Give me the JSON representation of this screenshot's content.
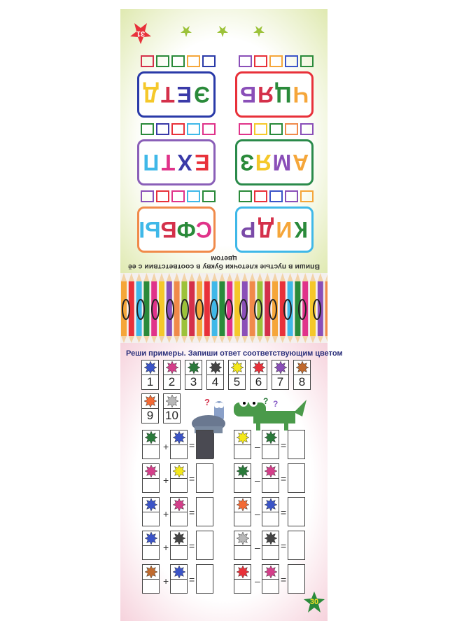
{
  "top_page": {
    "page_number": "31",
    "instruction": "Впиши в пустые клеточки букву в соответствии с её цветом",
    "words": [
      {
        "frame": "#3fb8e8",
        "letters": [
          [
            "К",
            "#2a8a3a"
          ],
          [
            "И",
            "#f5a63a"
          ],
          [
            "Д",
            "#d4304a"
          ],
          [
            "Р",
            "#7a4aa8"
          ]
        ],
        "squares": [
          "#f5a63a",
          "#8a4fb8",
          "#3b54c8",
          "#e8313a",
          "#2a8a3a"
        ]
      },
      {
        "frame": "#f08a4a",
        "letters": [
          [
            "С",
            "#e0338a"
          ],
          [
            "Ф",
            "#2a8a3a"
          ],
          [
            "Б",
            "#d4304a"
          ],
          [
            "Ы",
            "#3fb8e8"
          ]
        ],
        "squares": [
          "#2a8a3a",
          "#3fb8e8",
          "#e0338a",
          "#e8313a",
          "#8a4fb8"
        ]
      },
      {
        "frame": "#2a8a4a",
        "letters": [
          [
            "А",
            "#f5a63a"
          ],
          [
            "М",
            "#8a4fb8"
          ],
          [
            "Я",
            "#f5c82a"
          ],
          [
            "З",
            "#2a8a3a"
          ]
        ],
        "squares": [
          "#8a4fb8",
          "#f08a4a",
          "#2a8a3a",
          "#f5c82a",
          "#e0338a"
        ]
      },
      {
        "frame": "#8a5fb8",
        "letters": [
          [
            "Е",
            "#e8313a"
          ],
          [
            "Х",
            "#3a3aa8"
          ],
          [
            "Т",
            "#e0338a"
          ],
          [
            "П",
            "#3fb8e8"
          ]
        ],
        "squares": [
          "#e0338a",
          "#3fb8e8",
          "#e8313a",
          "#3a3aa8",
          "#2a8a3a"
        ]
      },
      {
        "frame": "#e8313a",
        "letters": [
          [
            "Ч",
            "#f5a63a"
          ],
          [
            "Ц",
            "#2a8a3a"
          ],
          [
            "Я",
            "#d4304a"
          ],
          [
            "Б",
            "#8a4fb8"
          ]
        ],
        "squares": [
          "#2a8a3a",
          "#3b54c8",
          "#f5a63a",
          "#e8313a",
          "#8a4fb8"
        ]
      },
      {
        "frame": "#2a3aa8",
        "letters": [
          [
            "Э",
            "#2a8a3a"
          ],
          [
            "Е",
            "#3a3aa8"
          ],
          [
            "Т",
            "#d4304a"
          ],
          [
            "Д",
            "#f5c82a"
          ]
        ],
        "squares": [
          "#2a3aa8",
          "#f5a63a",
          "#2a8a3a",
          "#2a8a3a",
          "#d4304a"
        ]
      }
    ]
  },
  "bottom_page": {
    "title": "Реши примеры. Запиши ответ соответствующим цветом",
    "page_number": "30",
    "key": [
      {
        "n": "1",
        "color": "#3b54c8"
      },
      {
        "n": "2",
        "color": "#d43f8a"
      },
      {
        "n": "3",
        "color": "#2a7a3a"
      },
      {
        "n": "4",
        "color": "#444444"
      },
      {
        "n": "5",
        "color": "#f4e81a"
      },
      {
        "n": "6",
        "color": "#e8313a"
      },
      {
        "n": "7",
        "color": "#8a4fb8"
      },
      {
        "n": "8",
        "color": "#c06a2e"
      },
      {
        "n": "9",
        "color": "#f36a35"
      },
      {
        "n": "10",
        "color": "#b8b8b8"
      }
    ],
    "addition": [
      [
        "#2a7a3a",
        "#3b54c8"
      ],
      [
        "#d43f8a",
        "#f4e81a"
      ],
      [
        "#3b54c8",
        "#d43f8a"
      ],
      [
        "#3b54c8",
        "#444444"
      ],
      [
        "#c06a2e",
        "#3b54c8"
      ]
    ],
    "subtraction": [
      [
        "#f4e81a",
        "#2a7a3a"
      ],
      [
        "#2a7a3a",
        "#d43f8a"
      ],
      [
        "#f36a35",
        "#3b54c8"
      ],
      [
        "#b8b8b8",
        "#444444"
      ],
      [
        "#e8313a",
        "#d43f8a"
      ]
    ],
    "plus": "+",
    "minus": "–",
    "equals": "=",
    "question_marks": "?"
  }
}
